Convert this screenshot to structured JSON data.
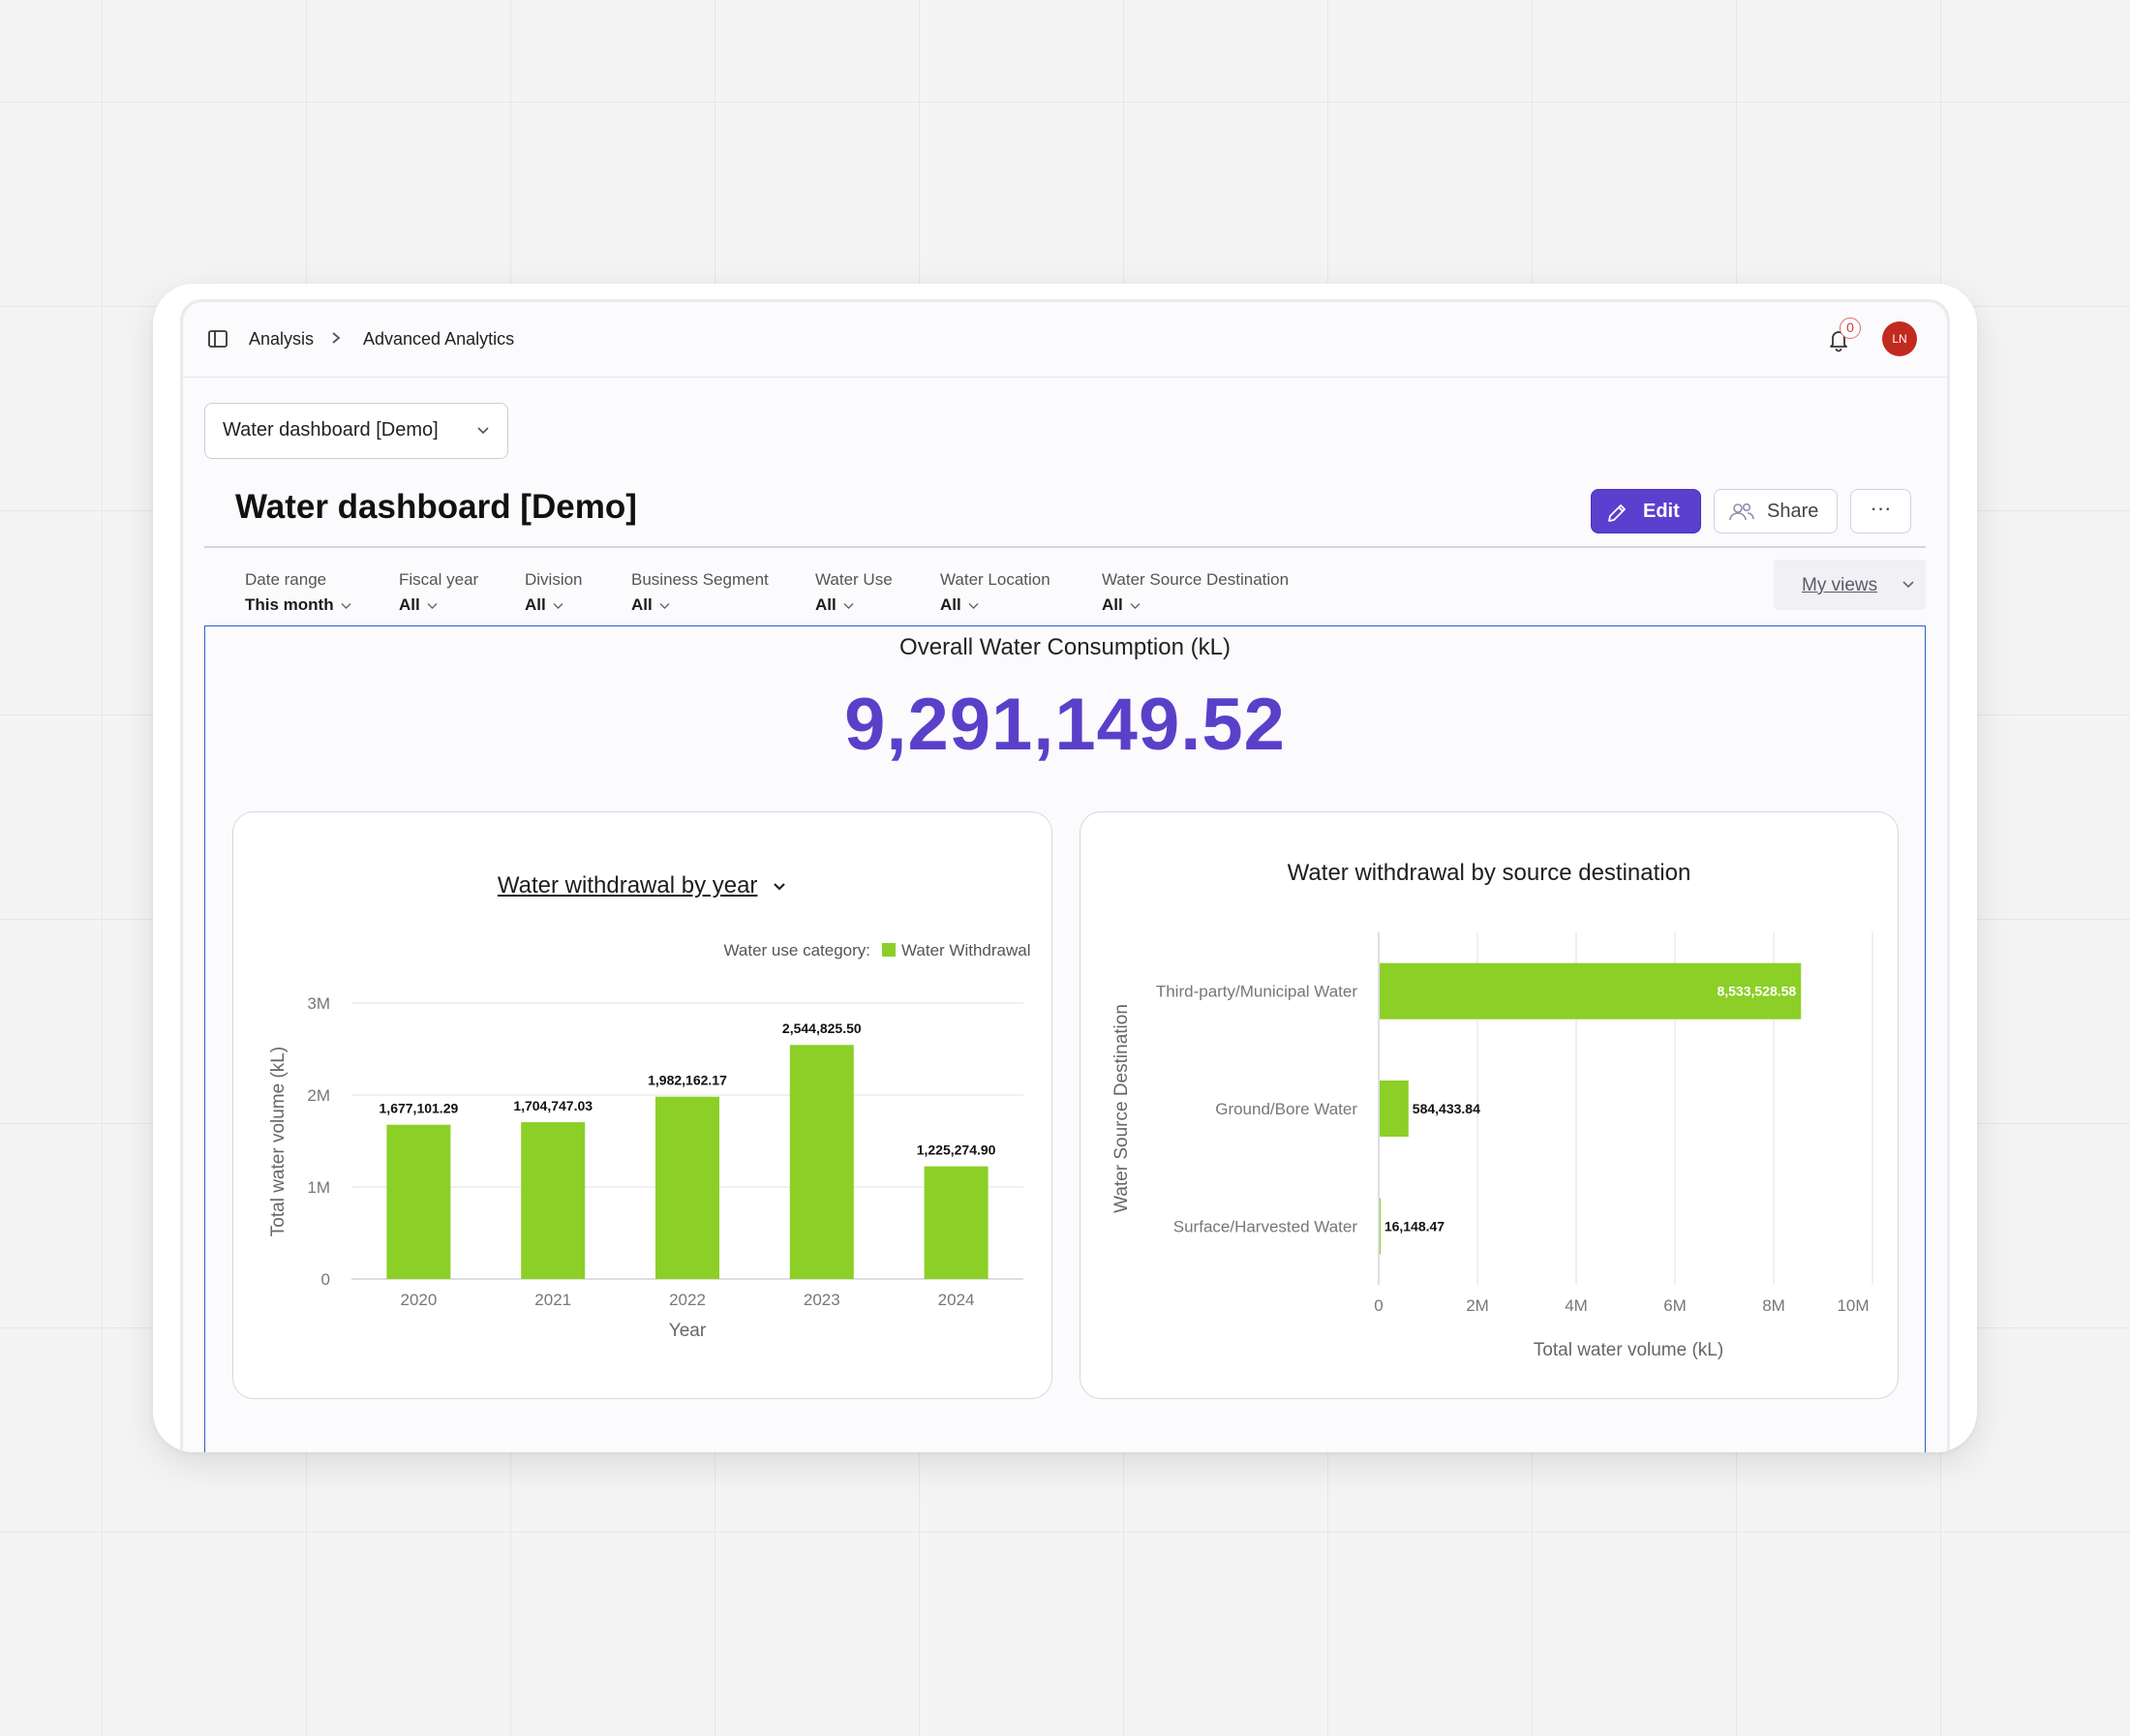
{
  "breadcrumb": {
    "items": [
      "Analysis",
      "Advanced Analytics"
    ]
  },
  "notifications": {
    "count": "0"
  },
  "user": {
    "initials": "LN"
  },
  "dashboard_selector": {
    "value": "Water dashboard [Demo]"
  },
  "page": {
    "title": "Water dashboard [Demo]"
  },
  "actions": {
    "edit": "Edit",
    "share": "Share",
    "more": "···"
  },
  "filters": [
    {
      "label": "Date range",
      "value": "This month"
    },
    {
      "label": "Fiscal year",
      "value": "All"
    },
    {
      "label": "Division",
      "value": "All"
    },
    {
      "label": "Business Segment",
      "value": "All"
    },
    {
      "label": "Water Use",
      "value": "All"
    },
    {
      "label": "Water Location",
      "value": "All"
    },
    {
      "label": "Water Source Destination",
      "value": "All"
    }
  ],
  "my_views": "My views",
  "kpi": {
    "title": "Overall Water Consumption (kL)",
    "value": "9,291,149.52"
  },
  "colors": {
    "accent": "#5b3fcf",
    "bar": "#8ccf27",
    "kpi": "#5a40c9"
  },
  "chart_data": [
    {
      "type": "bar",
      "title": "Water withdrawal by year",
      "legend_title": "Water use category:",
      "legend_position": "top-right",
      "xlabel": "Year",
      "ylabel": "Total water volume (kL)",
      "ylim": [
        0,
        3000000
      ],
      "yticks": [
        0,
        1000000,
        2000000,
        3000000
      ],
      "ytick_labels": [
        "0",
        "1M",
        "2M",
        "3M"
      ],
      "categories": [
        "2020",
        "2021",
        "2022",
        "2023",
        "2024"
      ],
      "series": [
        {
          "name": "Water Withdrawal",
          "values": [
            1677101.29,
            1704747.03,
            1982162.17,
            2544825.5,
            1225274.9
          ],
          "labels": [
            "1,677,101.29",
            "1,704,747.03",
            "1,982,162.17",
            "2,544,825.50",
            "1,225,274.90"
          ]
        }
      ],
      "grid": true
    },
    {
      "type": "bar",
      "orientation": "horizontal",
      "title": "Water withdrawal by source destination",
      "xlabel": "Total water volume (kL)",
      "ylabel": "Water Source Destination",
      "xlim": [
        0,
        10000000
      ],
      "xticks": [
        0,
        2000000,
        4000000,
        6000000,
        8000000,
        10000000
      ],
      "xtick_labels": [
        "0",
        "2M",
        "4M",
        "6M",
        "8M",
        "10M"
      ],
      "categories": [
        "Third-party/Municipal Water",
        "Ground/Bore Water",
        "Surface/Harvested Water"
      ],
      "values": [
        8533528.58,
        584433.84,
        16148.47
      ],
      "labels": [
        "8,533,528.58",
        "584,433.84",
        "16,148.47"
      ],
      "grid": true
    }
  ]
}
